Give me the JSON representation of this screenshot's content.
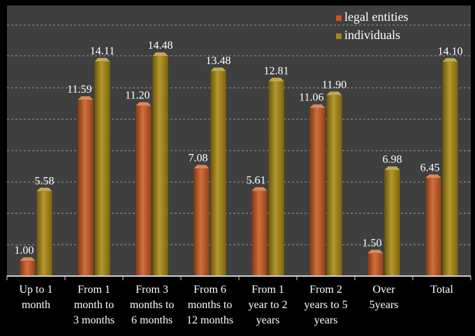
{
  "chart_data": {
    "type": "bar",
    "title": "",
    "xlabel": "",
    "ylabel": "",
    "ylim": [
      0,
      16.5
    ],
    "grid": true,
    "legend_position": "top-right",
    "categories": [
      [
        "Up to 1",
        "month"
      ],
      [
        "From 1",
        "month to",
        "3 months"
      ],
      [
        "From 3",
        "months to",
        "6 months"
      ],
      [
        "From 6",
        "months to",
        "12 months"
      ],
      [
        "From 1",
        "year to 2",
        "years"
      ],
      [
        "From 2",
        "years to 5",
        "years"
      ],
      [
        "Over",
        "5years"
      ],
      [
        "Total"
      ]
    ],
    "series": [
      {
        "name": "legal entities",
        "color": "#c8561c",
        "values": [
          1.0,
          11.59,
          11.2,
          7.08,
          5.61,
          11.06,
          1.5,
          6.45
        ],
        "labels": [
          "1.00",
          "11.59",
          "11.20",
          "7.08",
          "5.61",
          "11.06",
          "1.50",
          "6.45"
        ]
      },
      {
        "name": "individuals",
        "color": "#a8860c",
        "values": [
          5.58,
          14.11,
          14.48,
          13.48,
          12.81,
          11.9,
          6.98,
          14.1
        ],
        "labels": [
          "5.58",
          "14.11",
          "14.48",
          "13.48",
          "12.81",
          "11.90",
          "6.98",
          "14.10"
        ]
      }
    ]
  }
}
